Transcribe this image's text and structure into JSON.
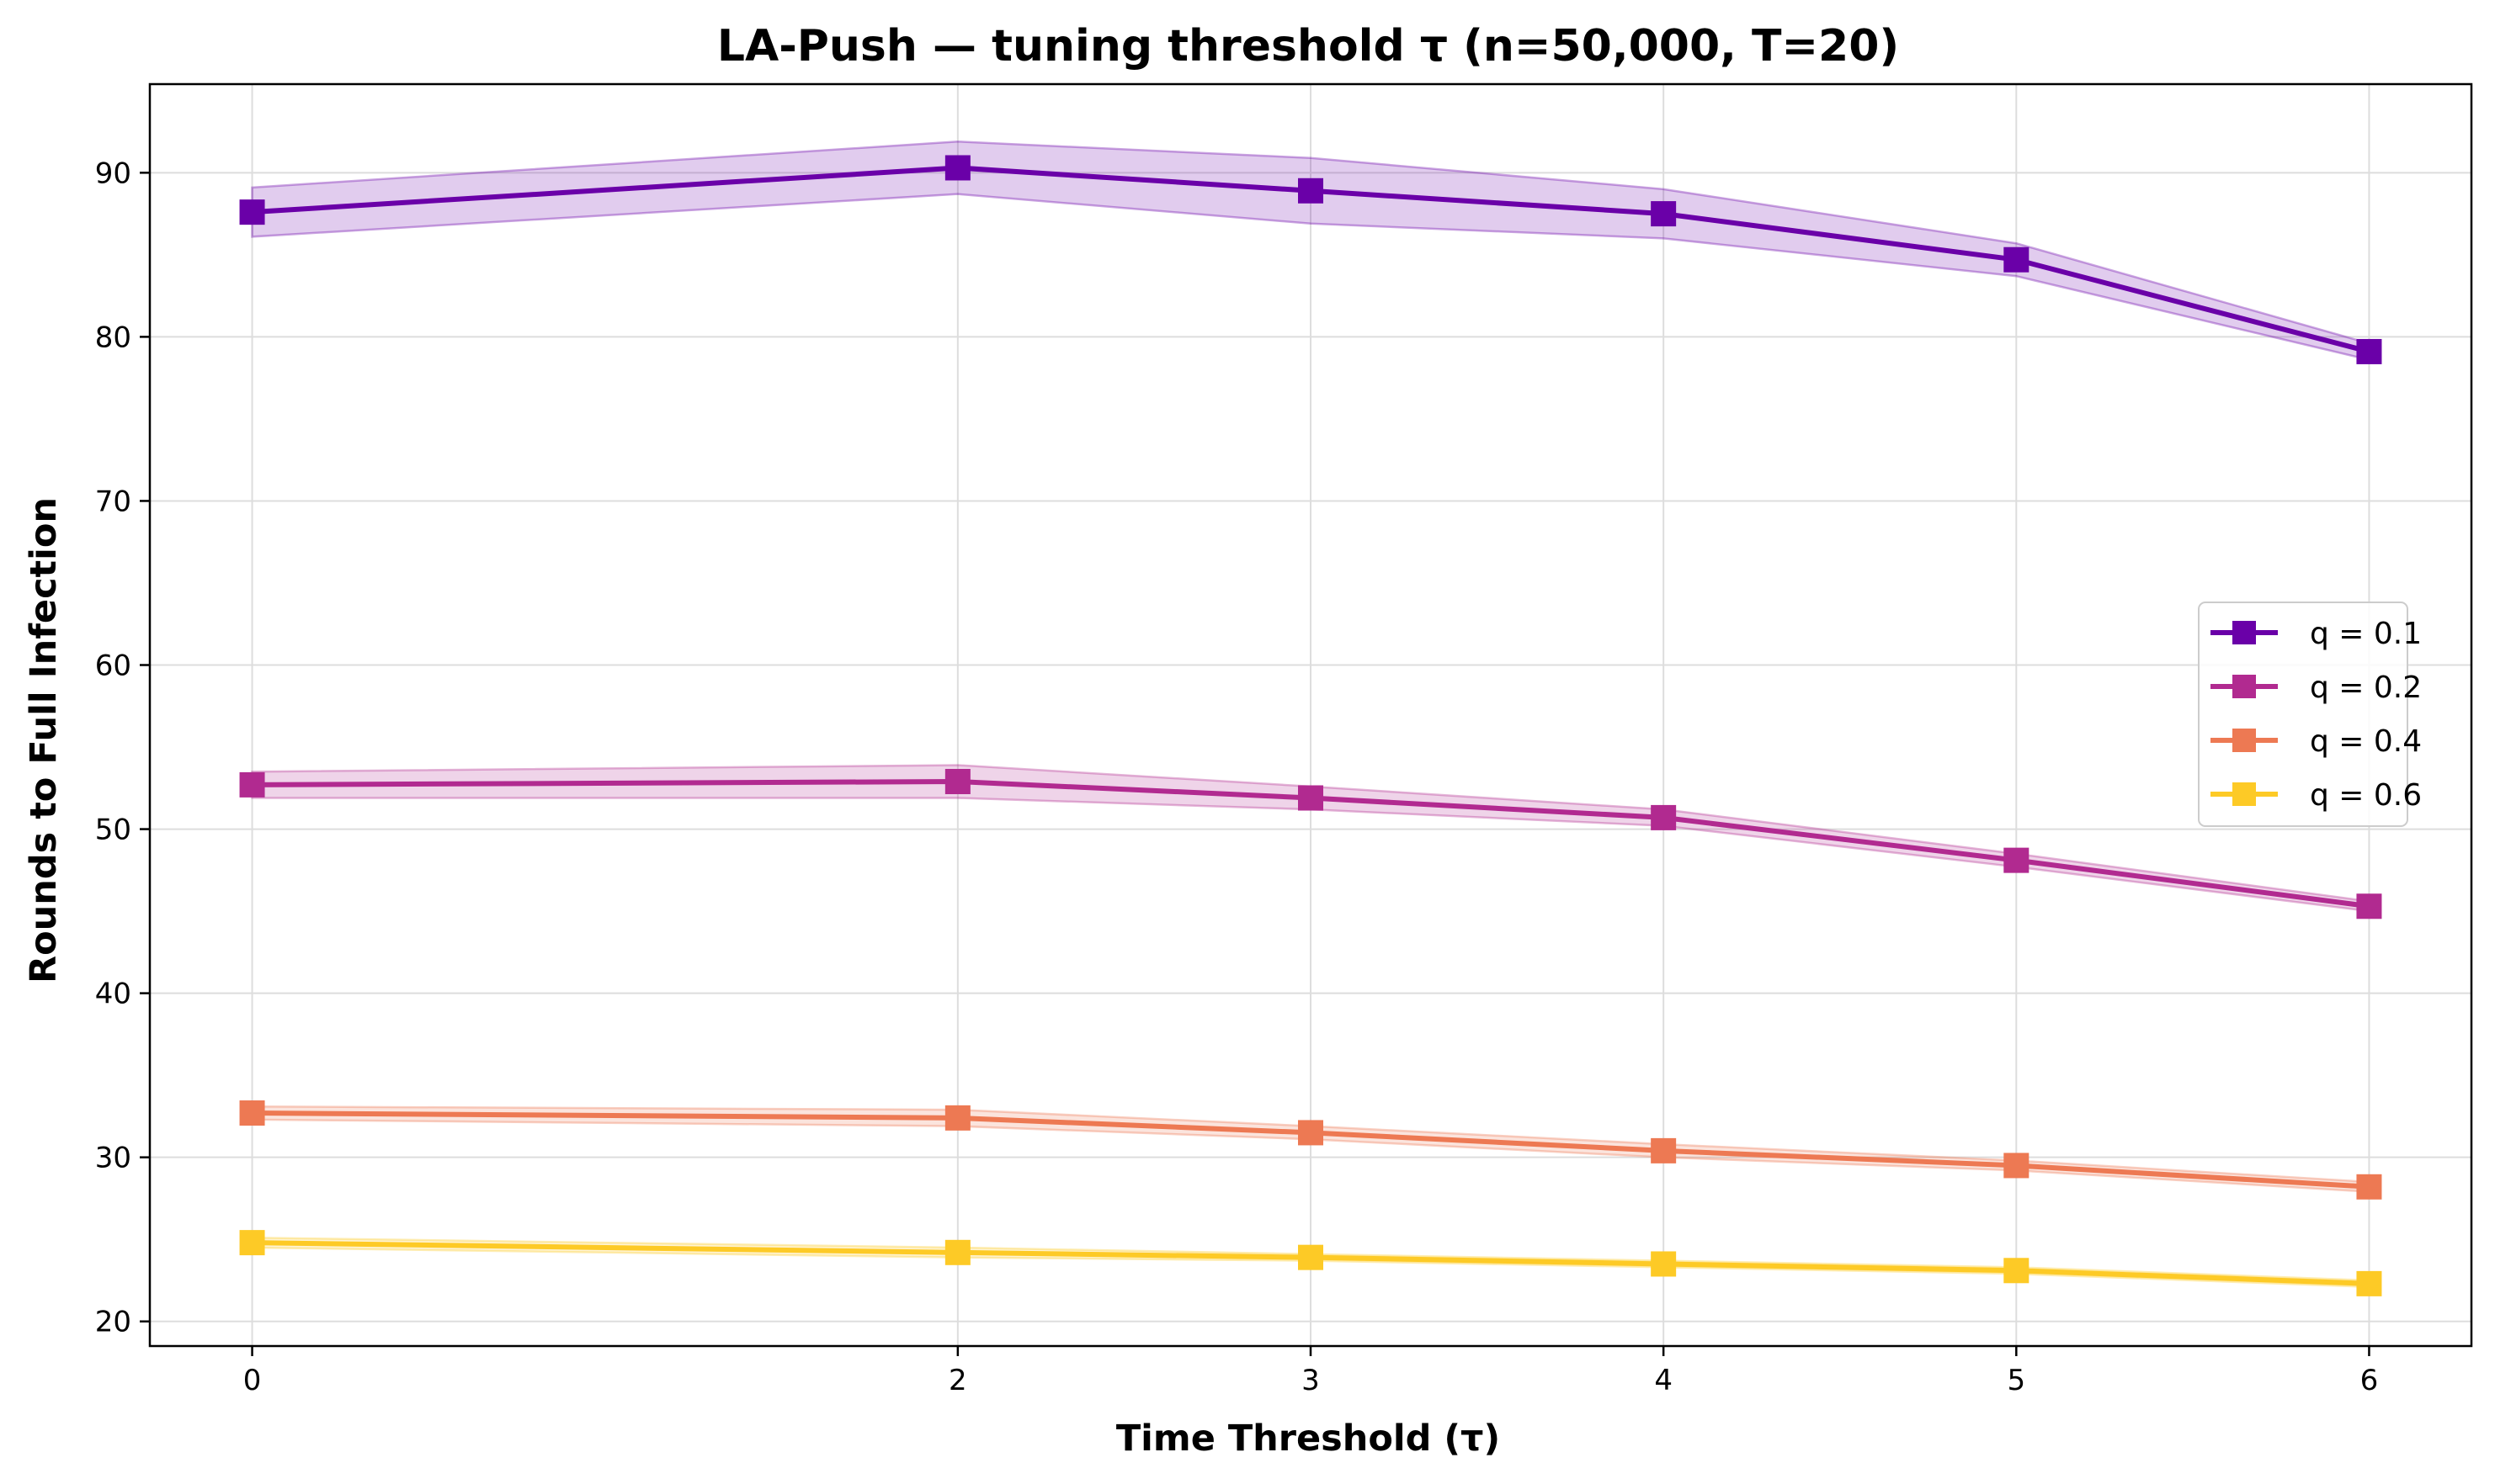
{
  "chart_data": {
    "type": "line",
    "title": "LA-Push — tuning threshold τ (n=50,000, T=20)",
    "xlabel": "Time Threshold (τ)",
    "ylabel": "Rounds to Full Infection",
    "x": [
      0,
      2,
      3,
      4,
      5,
      6
    ],
    "xlim": [
      -0.29,
      6.29
    ],
    "ylim": [
      18.5,
      95.4
    ],
    "yticks": [
      20,
      30,
      40,
      50,
      60,
      70,
      80,
      90
    ],
    "grid": true,
    "legend_position": "center-right",
    "series": [
      {
        "name": "q = 0.1",
        "color": "#6a00a8",
        "values": [
          87.6,
          90.3,
          88.9,
          87.5,
          84.7,
          79.1
        ],
        "band_lower": [
          86.1,
          88.7,
          86.9,
          86.0,
          83.7,
          78.6
        ],
        "band_upper": [
          89.1,
          91.9,
          90.9,
          89.0,
          85.7,
          79.6
        ]
      },
      {
        "name": "q = 0.2",
        "color": "#b12a90",
        "values": [
          52.7,
          52.9,
          51.9,
          50.7,
          48.1,
          45.3
        ],
        "band_lower": [
          51.9,
          51.9,
          51.2,
          50.2,
          47.7,
          45.0
        ],
        "band_upper": [
          53.5,
          53.9,
          52.6,
          51.2,
          48.5,
          45.6
        ]
      },
      {
        "name": "q = 0.4",
        "color": "#ed7953",
        "values": [
          32.7,
          32.4,
          31.5,
          30.4,
          29.5,
          28.2
        ],
        "band_lower": [
          32.3,
          31.9,
          31.1,
          30.0,
          29.2,
          27.9
        ],
        "band_upper": [
          33.1,
          32.9,
          31.9,
          30.8,
          29.8,
          28.5
        ]
      },
      {
        "name": "q = 0.6",
        "color": "#fdca26",
        "values": [
          24.8,
          24.2,
          23.9,
          23.5,
          23.1,
          22.3
        ],
        "band_lower": [
          24.5,
          23.9,
          23.7,
          23.3,
          22.9,
          22.1
        ],
        "band_upper": [
          25.1,
          24.5,
          24.1,
          23.7,
          23.3,
          22.5
        ]
      }
    ]
  }
}
